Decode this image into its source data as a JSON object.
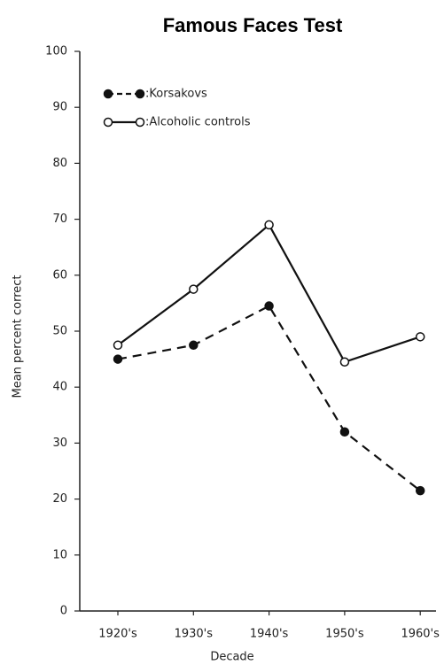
{
  "chart_data": {
    "type": "line",
    "title": "Famous Faces Test",
    "x_label": "Decade",
    "y_label": "Mean percent correct",
    "categories": [
      "1920's",
      "1930's",
      "1940's",
      "1950's",
      "1960's"
    ],
    "series": [
      {
        "name": ":Korsakovs",
        "color": "#111111",
        "line_style": "dashed",
        "marker_fill": "filled",
        "values": [
          45,
          47.5,
          54.5,
          32,
          21.5
        ]
      },
      {
        "name": ":Alcoholic controls",
        "color": "#111111",
        "line_style": "solid",
        "marker_fill": "open",
        "values": [
          47.5,
          57.5,
          69,
          44.5,
          49
        ]
      }
    ],
    "ylim": [
      0,
      100
    ],
    "yticks": [
      0,
      10,
      20,
      30,
      40,
      50,
      60,
      70,
      80,
      90,
      100
    ],
    "grid": false,
    "legend": "upper left"
  }
}
